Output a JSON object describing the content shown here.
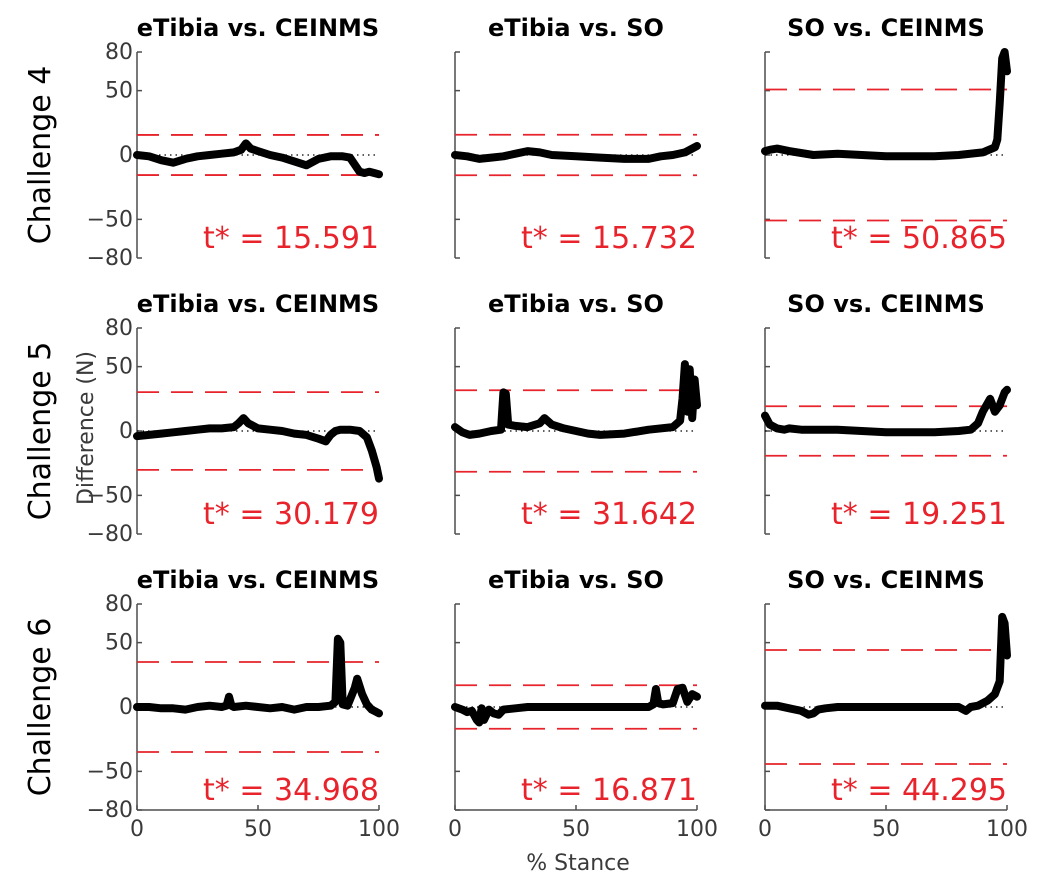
{
  "chart_data": {
    "type": "line",
    "xlabel": "% Stance",
    "ylabel": "Difference (N)",
    "xlim": [
      0,
      100
    ],
    "ylim": [
      -80,
      80
    ],
    "xticks": [
      0,
      50,
      100
    ],
    "yticks": [
      80,
      50,
      0,
      -50,
      -80
    ],
    "colors": {
      "line": "#000000",
      "threshold": "#e8232b",
      "zero": "#000000",
      "axis": "#4d4d4d"
    },
    "rows": [
      {
        "label": "Challenge 4",
        "panels": [
          {
            "title": "eTibia vs. CEINMS",
            "tstar": 15.591,
            "tstar_label": "t* = 15.591",
            "x": [
              0,
              5,
              10,
              15,
              20,
              25,
              30,
              35,
              40,
              43,
              45,
              47,
              50,
              55,
              60,
              65,
              70,
              75,
              80,
              85,
              88,
              92,
              94,
              96,
              98,
              100
            ],
            "y": [
              0,
              -1,
              -4,
              -6,
              -3,
              -1,
              0,
              1,
              2,
              4,
              9,
              5,
              3,
              0,
              -2,
              -5,
              -8,
              -3,
              -1,
              -1,
              -2,
              -13,
              -14,
              -13,
              -14,
              -15
            ]
          },
          {
            "title": "eTibia vs. SO",
            "tstar": 15.732,
            "tstar_label": "t* = 15.732",
            "x": [
              0,
              5,
              10,
              15,
              20,
              25,
              30,
              35,
              40,
              50,
              60,
              70,
              80,
              85,
              90,
              95,
              98,
              100
            ],
            "y": [
              0,
              -1,
              -3,
              -2,
              -1,
              1,
              3,
              2,
              0,
              -1,
              -2,
              -3,
              -3,
              -1,
              0,
              2,
              5,
              7
            ]
          },
          {
            "title": "SO vs. CEINMS",
            "tstar": 50.865,
            "tstar_label": "t* = 50.865",
            "x": [
              0,
              2,
              5,
              10,
              20,
              30,
              40,
              50,
              60,
              70,
              80,
              90,
              95,
              96,
              97,
              98,
              99,
              100
            ],
            "y": [
              3,
              4,
              5,
              3,
              0,
              1,
              0,
              -1,
              -1,
              -1,
              0,
              2,
              6,
              12,
              40,
              75,
              80,
              65
            ]
          }
        ]
      },
      {
        "label": "Challenge 5",
        "panels": [
          {
            "title": "eTibia vs. CEINMS",
            "tstar": 30.179,
            "tstar_label": "t* = 30.179",
            "x": [
              0,
              5,
              10,
              15,
              20,
              25,
              30,
              35,
              40,
              42,
              44,
              46,
              50,
              55,
              60,
              65,
              70,
              75,
              78,
              80,
              82,
              84,
              88,
              92,
              95,
              97,
              99,
              100
            ],
            "y": [
              -4,
              -3,
              -2,
              -1,
              0,
              1,
              2,
              2,
              3,
              6,
              10,
              6,
              2,
              1,
              0,
              -2,
              -3,
              -6,
              -8,
              -3,
              0,
              1,
              1,
              0,
              -5,
              -15,
              -28,
              -37
            ]
          },
          {
            "title": "eTibia vs. SO",
            "tstar": 31.642,
            "tstar_label": "t* = 31.642",
            "x": [
              0,
              3,
              6,
              10,
              15,
              19,
              20,
              21,
              22,
              25,
              30,
              35,
              37,
              40,
              45,
              50,
              55,
              60,
              70,
              80,
              90,
              93,
              94,
              95,
              96,
              97,
              98,
              99,
              100
            ],
            "y": [
              3,
              -1,
              -3,
              -2,
              0,
              1,
              30,
              29,
              5,
              4,
              3,
              6,
              10,
              5,
              2,
              0,
              -2,
              -3,
              -2,
              1,
              3,
              8,
              25,
              52,
              15,
              48,
              10,
              40,
              20
            ]
          },
          {
            "title": "SO vs. CEINMS",
            "tstar": 19.251,
            "tstar_label": "t* = 19.251",
            "x": [
              0,
              2,
              5,
              8,
              10,
              15,
              20,
              30,
              40,
              50,
              60,
              70,
              80,
              85,
              88,
              90,
              93,
              95,
              97,
              99,
              100
            ],
            "y": [
              12,
              5,
              2,
              1,
              2,
              1,
              1,
              1,
              0,
              -1,
              -1,
              -1,
              0,
              1,
              6,
              15,
              25,
              15,
              20,
              30,
              32
            ]
          }
        ]
      },
      {
        "label": "Challenge 6",
        "panels": [
          {
            "title": "eTibia vs. CEINMS",
            "tstar": 34.968,
            "tstar_label": "t* = 34.968",
            "x": [
              0,
              5,
              10,
              15,
              20,
              25,
              30,
              35,
              37,
              38,
              39,
              40,
              45,
              50,
              55,
              60,
              65,
              70,
              75,
              80,
              82,
              83,
              84,
              85,
              87,
              90,
              91,
              93,
              95,
              97,
              99,
              100
            ],
            "y": [
              0,
              0,
              -1,
              -1,
              -2,
              0,
              1,
              0,
              1,
              8,
              1,
              0,
              1,
              0,
              -1,
              0,
              -2,
              0,
              0,
              1,
              4,
              53,
              50,
              2,
              1,
              15,
              22,
              10,
              2,
              -2,
              -4,
              -5
            ]
          },
          {
            "title": "eTibia vs. SO",
            "tstar": 16.871,
            "tstar_label": "t* = 16.871",
            "x": [
              0,
              3,
              5,
              7,
              9,
              10,
              11,
              12,
              14,
              16,
              18,
              20,
              25,
              30,
              40,
              50,
              60,
              70,
              80,
              82,
              83,
              84,
              86,
              90,
              92,
              94,
              96,
              98,
              100
            ],
            "y": [
              0,
              -2,
              -4,
              -3,
              -10,
              -12,
              -1,
              -10,
              -2,
              -5,
              -6,
              -2,
              -1,
              0,
              0,
              0,
              0,
              0,
              0,
              2,
              14,
              3,
              2,
              3,
              14,
              15,
              4,
              10,
              8
            ]
          },
          {
            "title": "SO vs. CEINMS",
            "tstar": 44.295,
            "tstar_label": "t* = 44.295",
            "x": [
              0,
              5,
              10,
              15,
              18,
              20,
              22,
              25,
              30,
              40,
              50,
              60,
              70,
              80,
              83,
              85,
              88,
              92,
              95,
              97,
              98,
              99,
              100
            ],
            "y": [
              1,
              1,
              -1,
              -3,
              -6,
              -5,
              -2,
              -1,
              0,
              0,
              0,
              0,
              0,
              0,
              -3,
              0,
              1,
              5,
              10,
              20,
              70,
              65,
              40
            ]
          }
        ]
      }
    ]
  }
}
